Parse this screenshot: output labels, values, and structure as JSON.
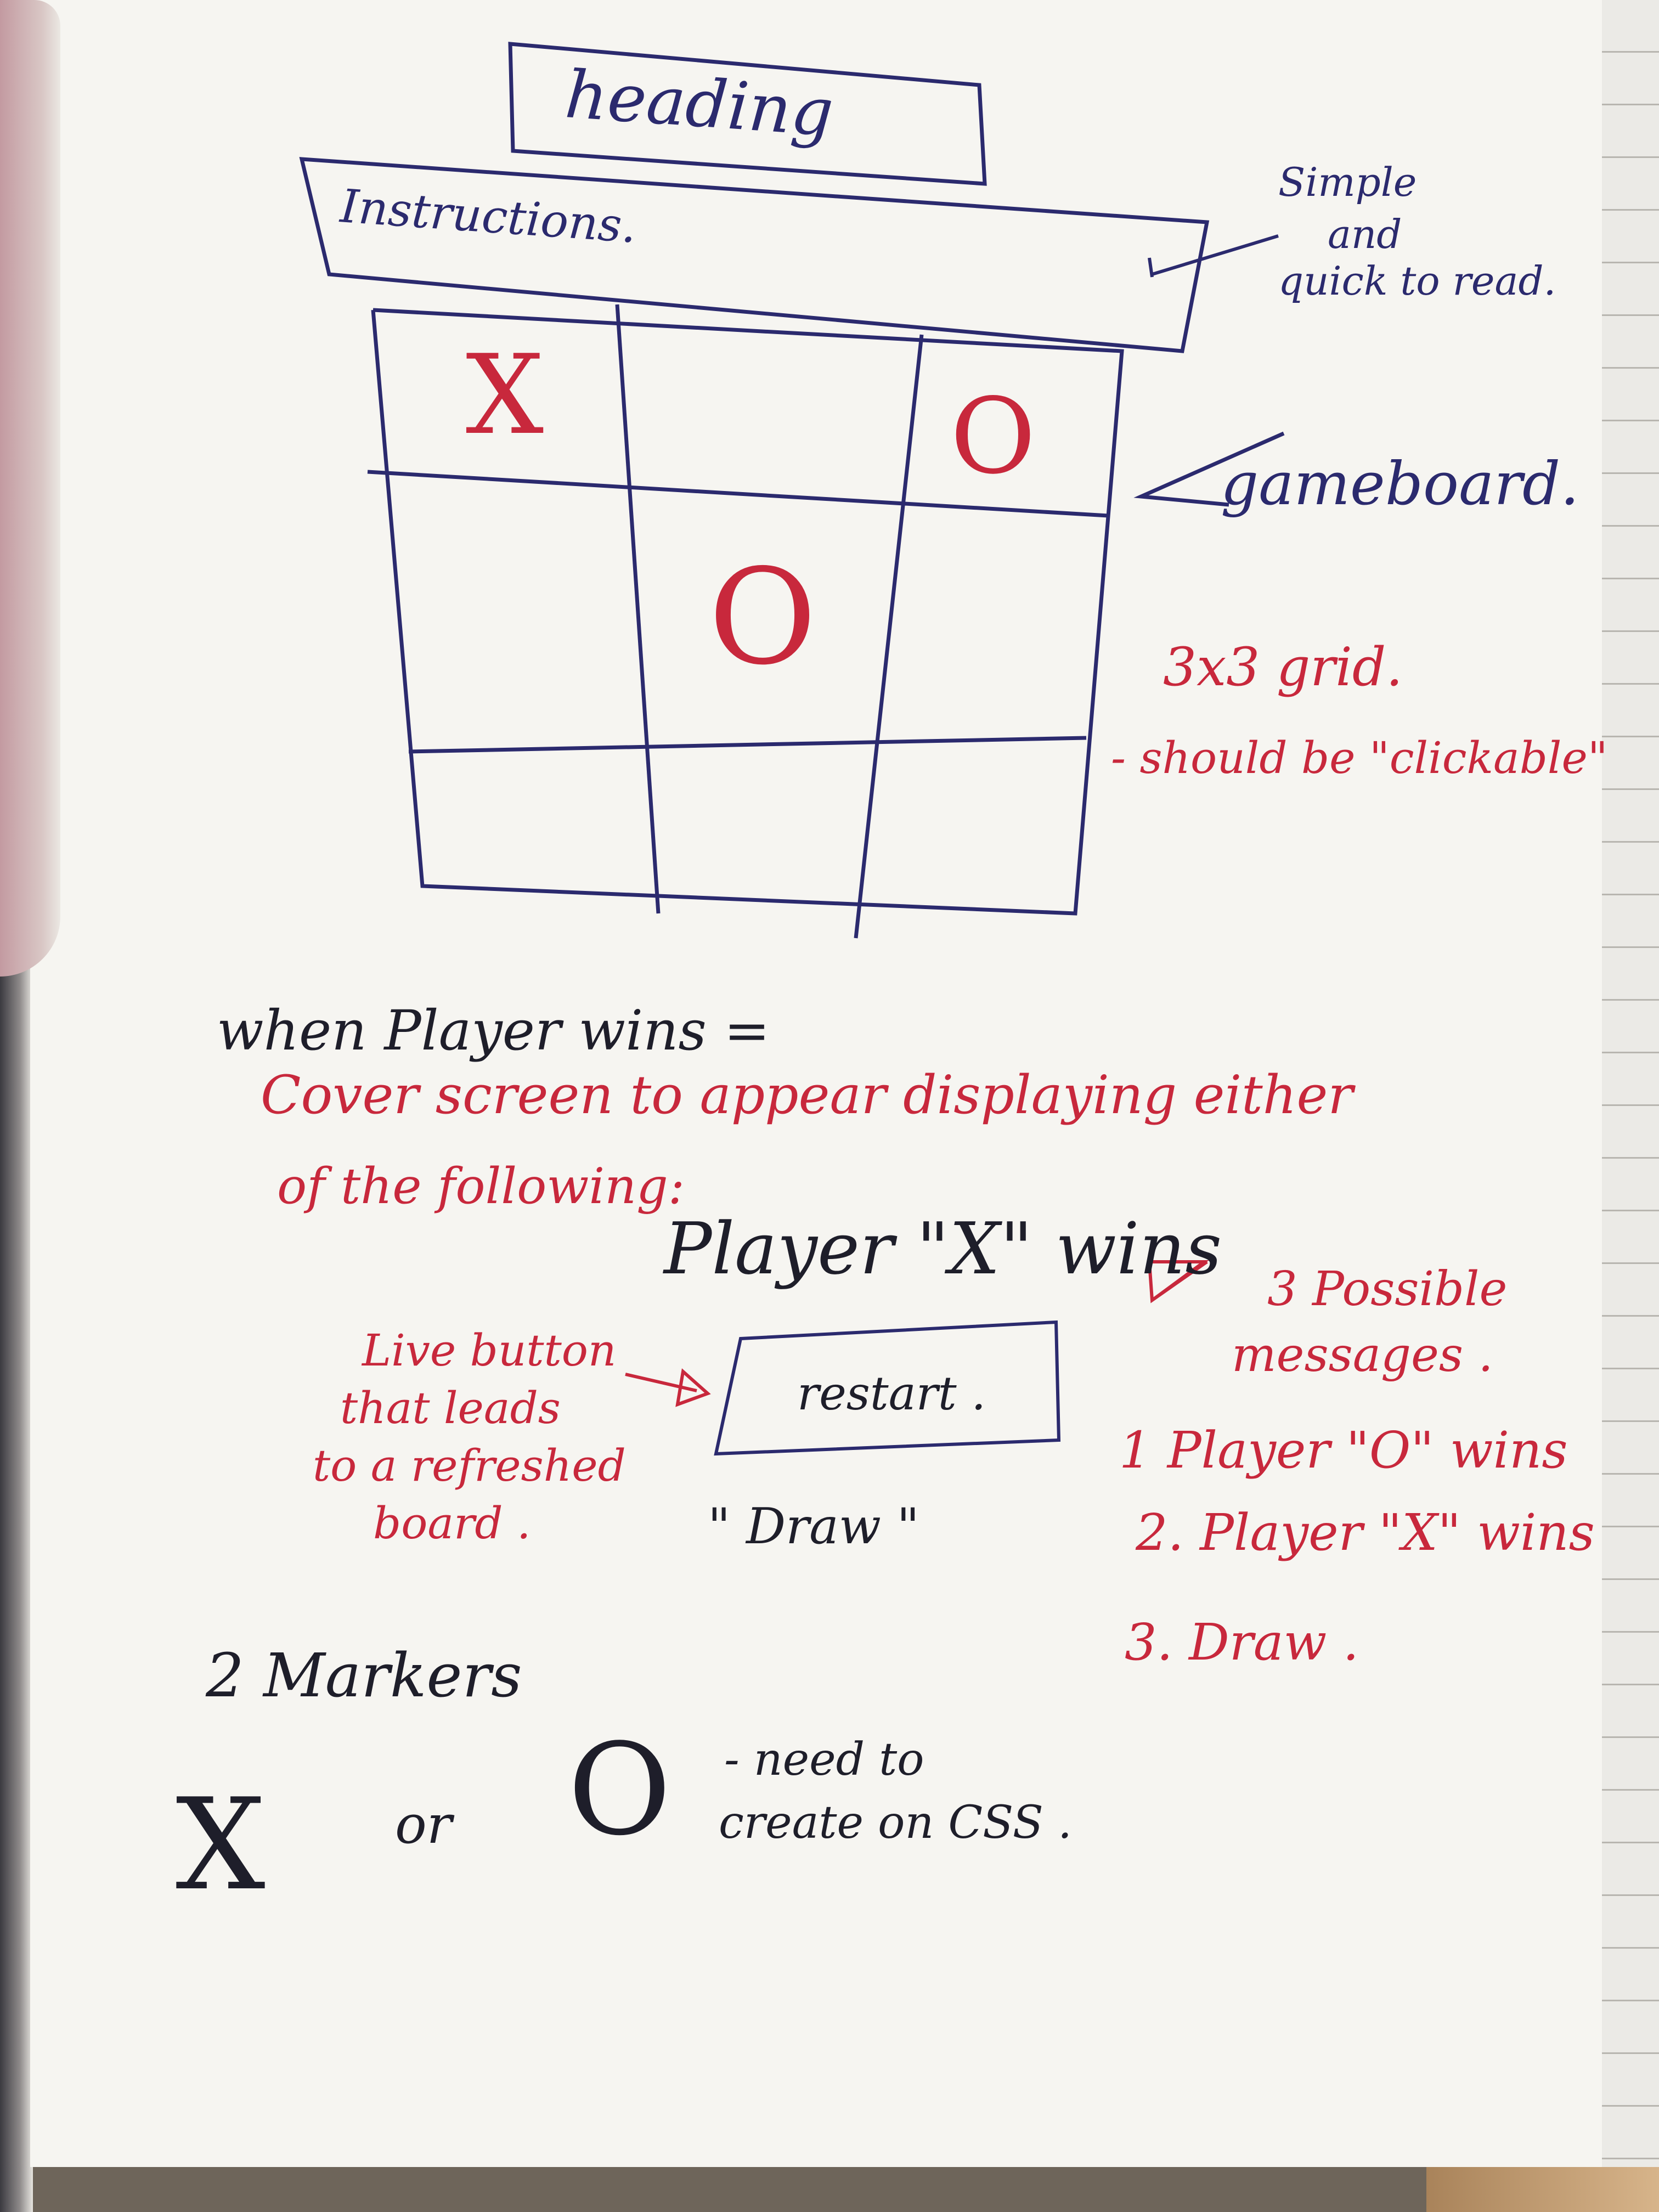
{
  "heading_box": "heading",
  "instructions_box": "Instructions.",
  "note_instructions": [
    "Simple",
    "and",
    "quick to read."
  ],
  "note_gameboard": "gameboard.",
  "note_grid": [
    "3x3 grid.",
    "- should be \"clickable\""
  ],
  "board": {
    "cells": [
      "X",
      "",
      "O",
      "",
      "O",
      "",
      "",
      "",
      ""
    ]
  },
  "win_section": {
    "line1": "when Player wins =",
    "line2": "Cover screen to appear displaying either",
    "line3": "of the following:",
    "message": "Player \"X\" wins",
    "restart_label": "restart .",
    "draw_label": "\" Draw \"",
    "button_note": [
      "Live button",
      "that leads",
      "to a refreshed",
      "board ."
    ]
  },
  "possible_messages": {
    "title": [
      "3 Possible",
      "messages ."
    ],
    "items": [
      "1 Player \"O\" wins",
      "2. Player \"X\" wins",
      "3. Draw ."
    ]
  },
  "markers": {
    "title": "2 Markers",
    "x": "X",
    "or": "or",
    "o": "O",
    "note": [
      "- need to",
      "create on CSS ."
    ]
  },
  "colors": {
    "ink_blue": "#2b2a6e",
    "ink_red": "#c8283c",
    "ink_black": "#1e1e2a"
  }
}
